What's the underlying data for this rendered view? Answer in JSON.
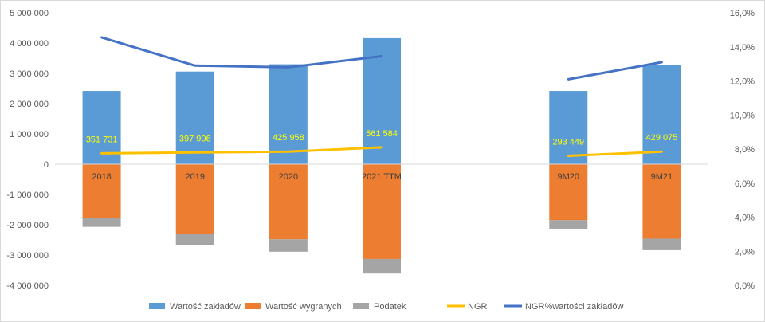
{
  "chart_data": {
    "type": "bar",
    "title": "",
    "categories": [
      "2018",
      "2019",
      "2020",
      "2021 TTM",
      "9M20",
      "9M21"
    ],
    "category_slots": [
      0,
      1,
      2,
      3,
      5,
      6
    ],
    "slot_count": 7,
    "y_left": {
      "min": -4000000,
      "max": 5000000,
      "step": 1000000,
      "ticks": [
        "-4 000 000",
        "-3 000 000",
        "-2 000 000",
        "-1 000 000",
        "0",
        "1 000 000",
        "2 000 000",
        "3 000 000",
        "4 000 000",
        "5 000 000"
      ]
    },
    "y_right": {
      "min": 0,
      "max": 0.16,
      "step": 0.02,
      "ticks": [
        "0,0%",
        "2,0%",
        "4,0%",
        "6,0%",
        "8,0%",
        "10,0%",
        "12,0%",
        "14,0%",
        "16,0%"
      ]
    },
    "series": [
      {
        "name": "Wartość zakładów",
        "kind": "bar",
        "color": "#5b9bd5",
        "values": [
          2420000,
          3060000,
          3300000,
          4160000,
          2420000,
          3270000
        ]
      },
      {
        "name": "Wartość wygranych",
        "kind": "bar",
        "color": "#ed7d31",
        "values": [
          -1770000,
          -2300000,
          -2480000,
          -3130000,
          -1850000,
          -2460000
        ]
      },
      {
        "name": "Podatek",
        "kind": "bar",
        "color": "#a5a5a5",
        "values": [
          -300000,
          -380000,
          -410000,
          -480000,
          -280000,
          -380000
        ]
      },
      {
        "name": "NGR",
        "kind": "line",
        "axis": "right",
        "color": "#ffc000",
        "values": [
          0.0775,
          0.078,
          0.0785,
          0.081,
          0.076,
          0.0785
        ],
        "labels": [
          "351 731",
          "397 906",
          "425 958",
          "561 584",
          "293 449",
          "429 075"
        ]
      },
      {
        "name": "NGR%wartości zakładów",
        "kind": "line",
        "axis": "right",
        "color": "#4472c4",
        "values": [
          0.1455,
          0.129,
          0.128,
          0.1345,
          0.121,
          0.131
        ]
      }
    ],
    "legend": "bottom",
    "grid": false
  }
}
